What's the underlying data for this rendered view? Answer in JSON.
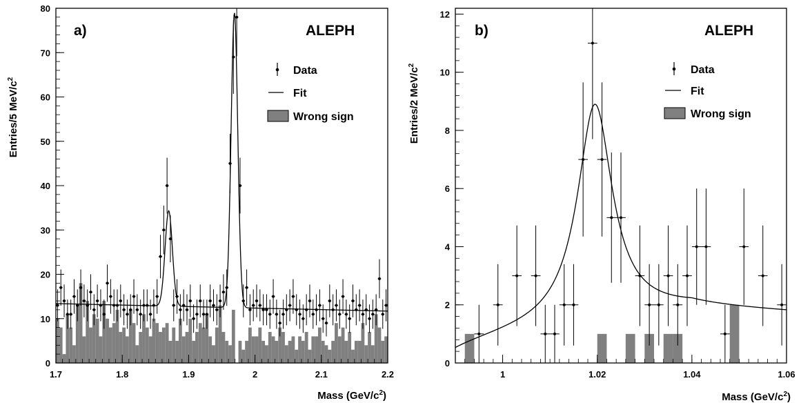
{
  "chart_data": [
    {
      "type": "histogram",
      "panel_label": "a)",
      "experiment_label": "ALEPH",
      "xlabel_main": "Mass (GeV/c",
      "xlabel_sup": "2",
      "xlabel_end": ")",
      "ylabel_main": "Entries/5 MeV/c",
      "ylabel_sup": "2",
      "xlim": [
        1.7,
        2.2
      ],
      "ylim": [
        0,
        80
      ],
      "xticks": [
        1.7,
        1.8,
        1.9,
        2.0,
        2.1,
        2.2
      ],
      "xtick_labels": [
        "1.7",
        "1.8",
        "1.9",
        "2",
        "2.1",
        "2.2"
      ],
      "yticks": [
        0,
        10,
        20,
        30,
        40,
        50,
        60,
        70,
        80
      ],
      "ytick_labels": [
        "0",
        "10",
        "20",
        "30",
        "40",
        "50",
        "60",
        "70",
        "80"
      ],
      "legend": [
        {
          "label": "Data",
          "kind": "data"
        },
        {
          "label": "Fit",
          "kind": "line"
        },
        {
          "label": "Wrong sign",
          "kind": "box"
        }
      ],
      "legend_position": "top-right",
      "fill_color": "#808080",
      "bin_width": 0.005,
      "data": {
        "x": [
          1.7025,
          1.7075,
          1.7125,
          1.7175,
          1.7225,
          1.7275,
          1.7325,
          1.7375,
          1.7425,
          1.7475,
          1.7525,
          1.7575,
          1.7625,
          1.7675,
          1.7725,
          1.7775,
          1.7825,
          1.7875,
          1.7925,
          1.7975,
          1.8025,
          1.8075,
          1.8125,
          1.8175,
          1.8225,
          1.8275,
          1.8325,
          1.8375,
          1.8425,
          1.8475,
          1.8525,
          1.8575,
          1.8625,
          1.8675,
          1.8725,
          1.8775,
          1.8825,
          1.8875,
          1.8925,
          1.8975,
          1.9025,
          1.9075,
          1.9125,
          1.9175,
          1.9225,
          1.9275,
          1.9325,
          1.9375,
          1.9425,
          1.9475,
          1.9525,
          1.9575,
          1.9625,
          1.9675,
          1.9725,
          1.9775,
          1.9825,
          1.9875,
          1.9925,
          1.9975,
          2.0025,
          2.0075,
          2.0125,
          2.0175,
          2.0225,
          2.0275,
          2.0325,
          2.0375,
          2.0425,
          2.0475,
          2.0525,
          2.0575,
          2.0625,
          2.0675,
          2.0725,
          2.0775,
          2.0825,
          2.0875,
          2.0925,
          2.0975,
          2.1025,
          2.1075,
          2.1125,
          2.1175,
          2.1225,
          2.1275,
          2.1325,
          2.1375,
          2.1425,
          2.1475,
          2.1525,
          2.1575,
          2.1625,
          2.1675,
          2.1725,
          2.1775,
          2.1825,
          2.1875,
          2.1925,
          2.1975
        ],
        "y": [
          13,
          17,
          14,
          11,
          11,
          15,
          13,
          17,
          14,
          13,
          16,
          12,
          14,
          13,
          11,
          18,
          15,
          13,
          13,
          14,
          12,
          11,
          12,
          15,
          12,
          11,
          13,
          13,
          11,
          13,
          15,
          24,
          30,
          40,
          28,
          13,
          15,
          12,
          13,
          12,
          14,
          10,
          11,
          14,
          11,
          11,
          14,
          13,
          12,
          14,
          16,
          17,
          45,
          69,
          78,
          40,
          14,
          17,
          12,
          13,
          14,
          13,
          12,
          12,
          11,
          15,
          11,
          9,
          11,
          12,
          13,
          15,
          12,
          11,
          10,
          12,
          14,
          11,
          12,
          13,
          10,
          9,
          14,
          12,
          13,
          11,
          15,
          11,
          10,
          14,
          12,
          13,
          11,
          12,
          10,
          11,
          12,
          19,
          11,
          13
        ],
        "yerr": [
          3.6,
          4.1,
          3.7,
          3.3,
          3.3,
          3.9,
          3.6,
          4.1,
          3.7,
          3.6,
          4.0,
          3.5,
          3.7,
          3.6,
          3.3,
          4.2,
          3.9,
          3.6,
          3.6,
          3.7,
          3.5,
          3.3,
          3.5,
          3.9,
          3.5,
          3.3,
          3.6,
          3.6,
          3.3,
          3.6,
          3.9,
          4.9,
          5.5,
          6.3,
          5.3,
          3.6,
          3.9,
          3.5,
          3.6,
          3.5,
          3.7,
          3.2,
          3.3,
          3.7,
          3.3,
          3.3,
          3.7,
          3.6,
          3.5,
          3.7,
          4.0,
          4.1,
          6.7,
          8.3,
          8.8,
          6.3,
          3.7,
          4.1,
          3.5,
          3.6,
          3.7,
          3.6,
          3.5,
          3.5,
          3.3,
          3.9,
          3.3,
          3.0,
          3.3,
          3.5,
          3.6,
          3.9,
          3.5,
          3.3,
          3.2,
          3.5,
          3.7,
          3.3,
          3.5,
          3.6,
          3.2,
          3.0,
          3.7,
          3.5,
          3.6,
          3.3,
          3.9,
          3.3,
          3.2,
          3.7,
          3.5,
          3.6,
          3.3,
          3.5,
          3.2,
          3.3,
          3.5,
          4.4,
          3.3,
          3.6
        ]
      },
      "wrong_sign": {
        "x": [
          1.7025,
          1.7075,
          1.7125,
          1.7175,
          1.7225,
          1.7275,
          1.7325,
          1.7375,
          1.7425,
          1.7475,
          1.7525,
          1.7575,
          1.7625,
          1.7675,
          1.7725,
          1.7775,
          1.7825,
          1.7875,
          1.7925,
          1.7975,
          1.8025,
          1.8075,
          1.8125,
          1.8175,
          1.8225,
          1.8275,
          1.8325,
          1.8375,
          1.8425,
          1.8475,
          1.8525,
          1.8575,
          1.8625,
          1.8675,
          1.8725,
          1.8775,
          1.8825,
          1.8875,
          1.8925,
          1.8975,
          1.9025,
          1.9075,
          1.9125,
          1.9175,
          1.9225,
          1.9275,
          1.9325,
          1.9375,
          1.9425,
          1.9475,
          1.9525,
          1.9575,
          1.9625,
          1.9675,
          1.9725,
          1.9775,
          1.9825,
          1.9875,
          1.9925,
          1.9975,
          2.0025,
          2.0075,
          2.0125,
          2.0175,
          2.0225,
          2.0275,
          2.0325,
          2.0375,
          2.0425,
          2.0475,
          2.0525,
          2.0575,
          2.0625,
          2.0675,
          2.0725,
          2.0775,
          2.0825,
          2.0875,
          2.0925,
          2.0975,
          2.1025,
          2.1075,
          2.1125,
          2.1175,
          2.1225,
          2.1275,
          2.1325,
          2.1375,
          2.1425,
          2.1475,
          2.1525,
          2.1575,
          2.1625,
          2.1675,
          2.1725,
          2.1775,
          2.1825,
          2.1875,
          2.1925,
          2.1975
        ],
        "y": [
          10,
          8,
          2,
          11,
          8,
          4,
          13,
          18,
          6,
          14,
          8,
          11,
          10,
          6,
          14,
          10,
          8,
          9,
          12,
          7,
          8,
          6,
          12,
          9,
          4,
          7,
          11,
          8,
          6,
          10,
          9,
          7,
          8,
          9,
          5,
          8,
          5,
          10,
          6,
          7,
          10,
          5,
          7,
          9,
          8,
          11,
          6,
          4,
          8,
          13,
          7,
          5,
          4,
          12,
          0,
          5,
          3,
          5,
          8,
          6,
          6,
          8,
          5,
          4,
          7,
          6,
          5,
          8,
          7,
          4,
          5,
          6,
          3,
          6,
          5,
          7,
          3,
          6,
          6,
          8,
          5,
          4,
          3,
          5,
          9,
          6,
          8,
          5,
          7,
          3,
          5,
          5,
          9,
          4,
          7,
          4,
          11,
          8,
          5,
          6
        ]
      },
      "fit": {
        "background": {
          "p0": 13.4,
          "slope": -3.4,
          "x0": 1.7
        },
        "peaks": [
          {
            "mean": 1.87,
            "sigma": 0.0055,
            "amplitude": 21.5
          },
          {
            "mean": 1.969,
            "sigma": 0.005,
            "amplitude": 66.5
          }
        ]
      }
    },
    {
      "type": "histogram",
      "panel_label": "b)",
      "experiment_label": "ALEPH",
      "xlabel_main": "Mass (GeV/c",
      "xlabel_sup": "2",
      "xlabel_end": ")",
      "ylabel_main": "Entries/2 MeV/c",
      "ylabel_sup": "2",
      "xlim": [
        0.99,
        1.06
      ],
      "ylim": [
        0,
        12.2
      ],
      "xticks": [
        1.0,
        1.02,
        1.04,
        1.06
      ],
      "xtick_labels": [
        "1",
        "1.02",
        "1.04",
        "1.06"
      ],
      "yticks": [
        0,
        2,
        4,
        6,
        8,
        10,
        12
      ],
      "ytick_labels": [
        "0",
        "2",
        "4",
        "6",
        "8",
        "10",
        "12"
      ],
      "legend": [
        {
          "label": "Data",
          "kind": "data"
        },
        {
          "label": "Fit",
          "kind": "line"
        },
        {
          "label": "Wrong sign",
          "kind": "box"
        }
      ],
      "legend_position": "top-right",
      "fill_color": "#808080",
      "bin_width": 0.002,
      "data": {
        "x": [
          0.995,
          0.999,
          1.003,
          1.007,
          1.009,
          1.011,
          1.013,
          1.015,
          1.017,
          1.019,
          1.021,
          1.023,
          1.025,
          1.029,
          1.031,
          1.033,
          1.035,
          1.037,
          1.039,
          1.041,
          1.043,
          1.047,
          1.051,
          1.055,
          1.059
        ],
        "y": [
          1,
          2,
          3,
          3,
          1,
          1,
          2,
          2,
          7,
          11,
          7,
          5,
          5,
          3,
          2,
          2,
          3,
          2,
          3,
          4,
          4,
          1,
          4,
          3,
          2
        ],
        "yerr": [
          1.0,
          1.4,
          1.73,
          1.73,
          1.0,
          1.0,
          1.4,
          1.4,
          2.65,
          3.3,
          2.65,
          2.24,
          2.24,
          1.73,
          1.4,
          1.4,
          1.73,
          1.4,
          1.73,
          2.0,
          2.0,
          1.0,
          2.0,
          1.73,
          1.4
        ]
      },
      "wrong_sign": {
        "x": [
          0.993,
          1.021,
          1.027,
          1.031,
          1.035,
          1.037,
          1.049
        ],
        "y": [
          1,
          1,
          1,
          1,
          1,
          1,
          2
        ]
      },
      "fit": {
        "background": {
          "p0": 1.9,
          "slope": -8.0,
          "x0": 1.04
        },
        "threshold": 0.9874,
        "peak": {
          "mean": 1.0195,
          "gamma": 0.0045,
          "amplitude": 7.45
        }
      }
    }
  ]
}
